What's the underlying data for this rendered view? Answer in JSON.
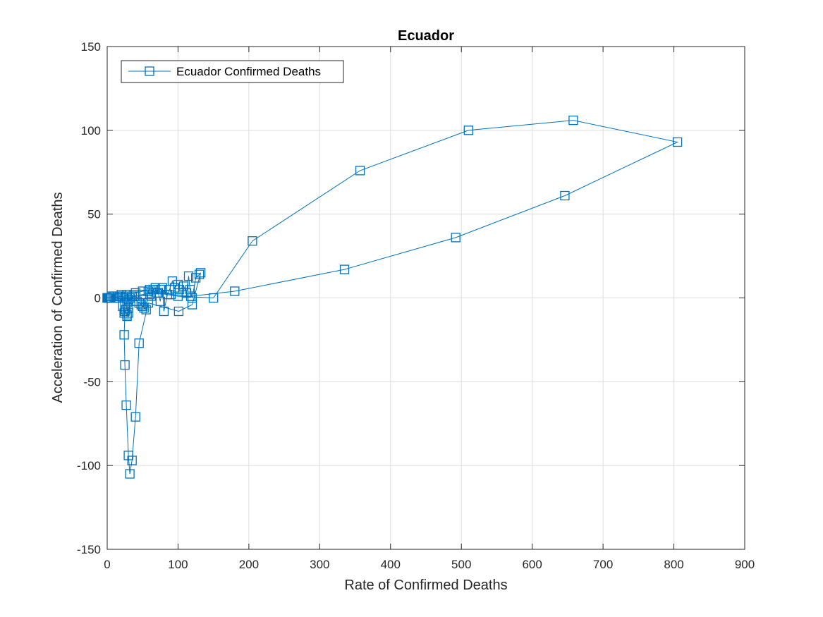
{
  "chart_data": {
    "type": "line",
    "title": "Ecuador",
    "xlabel": "Rate of Confirmed Deaths",
    "ylabel": "Acceleration of Confirmed Deaths",
    "xlim": [
      0,
      900
    ],
    "ylim": [
      -150,
      150
    ],
    "xticks": [
      0,
      100,
      200,
      300,
      400,
      500,
      600,
      700,
      800,
      900
    ],
    "yticks": [
      -150,
      -100,
      -50,
      0,
      50,
      100,
      150
    ],
    "grid": true,
    "legend_position": "top-left",
    "marker": "square",
    "color": "#0072BD",
    "series": [
      {
        "name": "Ecuador Confirmed Deaths",
        "points": [
          [
            0,
            0
          ],
          [
            1,
            0
          ],
          [
            2,
            0
          ],
          [
            3,
            0
          ],
          [
            4,
            0
          ],
          [
            5,
            0
          ],
          [
            6,
            1
          ],
          [
            8,
            1
          ],
          [
            10,
            0
          ],
          [
            12,
            0
          ],
          [
            15,
            1
          ],
          [
            18,
            1
          ],
          [
            20,
            1
          ],
          [
            22,
            0
          ],
          [
            20,
            2
          ],
          [
            24,
            0
          ],
          [
            26,
            1
          ],
          [
            28,
            2
          ],
          [
            30,
            -1
          ],
          [
            32,
            0
          ],
          [
            35,
            1
          ],
          [
            38,
            2
          ],
          [
            40,
            1
          ],
          [
            42,
            -2
          ],
          [
            45,
            -3
          ],
          [
            48,
            -4
          ],
          [
            50,
            -5
          ],
          [
            52,
            -6
          ],
          [
            55,
            -7
          ],
          [
            58,
            4
          ],
          [
            60,
            2
          ],
          [
            62,
            1
          ],
          [
            65,
            5
          ],
          [
            68,
            6
          ],
          [
            72,
            3
          ],
          [
            75,
            -2
          ],
          [
            78,
            6
          ],
          [
            80,
            -8
          ],
          [
            85,
            2
          ],
          [
            88,
            5
          ],
          [
            92,
            10
          ],
          [
            95,
            6
          ],
          [
            100,
            8
          ],
          [
            102,
            5
          ],
          [
            108,
            7
          ],
          [
            112,
            3
          ],
          [
            115,
            13
          ],
          [
            117,
            5
          ],
          [
            120,
            0
          ],
          [
            125,
            12
          ],
          [
            130,
            14
          ],
          [
            132,
            15
          ],
          [
            120,
            -4
          ],
          [
            101,
            -8
          ],
          [
            58,
            -3
          ],
          [
            45,
            -27
          ],
          [
            40,
            -71
          ],
          [
            35,
            -97
          ],
          [
            32,
            -105
          ],
          [
            30,
            -94
          ],
          [
            27,
            -64
          ],
          [
            25,
            -40
          ],
          [
            24,
            -22
          ],
          [
            25,
            -8
          ],
          [
            28,
            -10
          ],
          [
            30,
            -6
          ],
          [
            35,
            1
          ],
          [
            40,
            3
          ],
          [
            50,
            4
          ],
          [
            60,
            5
          ],
          [
            70,
            3
          ],
          [
            100,
            1
          ],
          [
            150,
            0
          ],
          [
            205,
            34
          ],
          [
            357,
            76
          ],
          [
            510,
            100
          ],
          [
            658,
            106
          ],
          [
            805,
            93
          ],
          [
            646,
            61
          ],
          [
            492,
            36
          ],
          [
            335,
            17
          ],
          [
            180,
            4
          ],
          [
            118,
            1
          ],
          [
            90,
            2
          ],
          [
            75,
            5
          ],
          [
            62,
            3
          ],
          [
            50,
            2
          ],
          [
            38,
            1
          ],
          [
            30,
            -2
          ],
          [
            28,
            -3
          ],
          [
            22,
            -5
          ],
          [
            24,
            -9
          ],
          [
            26,
            -7
          ],
          [
            28,
            -11
          ],
          [
            30,
            -9
          ],
          [
            25,
            -3
          ],
          [
            20,
            1
          ],
          [
            15,
            0
          ],
          [
            10,
            1
          ],
          [
            5,
            0
          ],
          [
            2,
            0
          ],
          [
            0,
            0
          ]
        ]
      }
    ]
  }
}
